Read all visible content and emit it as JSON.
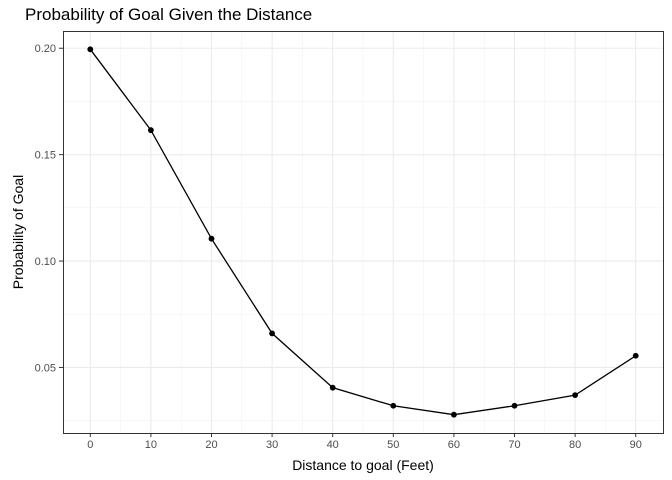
{
  "chart_data": {
    "type": "line",
    "title": "Probability of Goal Given the Distance",
    "xlabel": "Distance to goal (Feet)",
    "ylabel": "Probability of Goal",
    "x": [
      0,
      10,
      20,
      30,
      40,
      50,
      60,
      70,
      80,
      90
    ],
    "y": [
      0.1995,
      0.1615,
      0.1105,
      0.066,
      0.0405,
      0.032,
      0.0278,
      0.032,
      0.037,
      0.0555
    ],
    "xticks": [
      0,
      10,
      20,
      30,
      40,
      50,
      60,
      70,
      80,
      90
    ],
    "xtick_labels": [
      "0",
      "10",
      "20",
      "30",
      "40",
      "50",
      "60",
      "70",
      "80",
      "90"
    ],
    "yticks": [
      0.05,
      0.1,
      0.15,
      0.2
    ],
    "ytick_labels": [
      "0.05",
      "0.10",
      "0.15",
      "0.20"
    ],
    "xlim": [
      -4.5,
      94.5
    ],
    "ylim": [
      0.0192,
      0.2081
    ],
    "grid": true,
    "colors": {
      "line": "#000000",
      "points": "#000000",
      "panel_border": "#333333",
      "grid": "#ebebeb"
    }
  }
}
